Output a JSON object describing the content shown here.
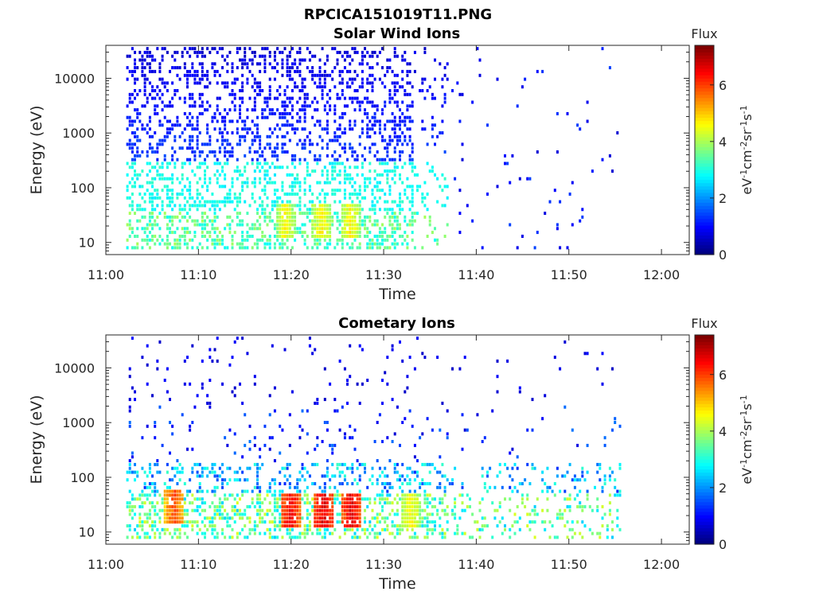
{
  "figure_title": "RPCICA151019T11.PNG",
  "chart_data": [
    {
      "type": "heatmap",
      "title": "Solar Wind Ions",
      "xlabel": "Time",
      "ylabel": "Energy (eV)",
      "xticks": [
        "11:00",
        "11:10",
        "11:20",
        "11:30",
        "11:40",
        "11:50",
        "12:00"
      ],
      "xlim_minutes": [
        0,
        63
      ],
      "yscale": "log",
      "yticks": [
        10,
        100,
        1000,
        10000
      ],
      "ytick_labels": [
        "10",
        "100",
        "1000",
        "10000"
      ],
      "ylim": [
        6,
        40000
      ],
      "colorbar": {
        "title": "Flux",
        "label": "eV-1cm-2sr-1s-1",
        "range": [
          0,
          7.4
        ],
        "ticks": [
          "0",
          "2",
          "4",
          "6"
        ],
        "colormap": "jet"
      },
      "activity_end_minute": 55.2,
      "hotspots": [
        {
          "minute": 19.3,
          "energy_eV": 25,
          "flux": 4.9
        },
        {
          "minute": 23.2,
          "energy_eV": 25,
          "flux": 5.0
        },
        {
          "minute": 26.3,
          "energy_eV": 25,
          "flux": 5.0
        }
      ]
    },
    {
      "type": "heatmap",
      "title": "Cometary Ions",
      "xlabel": "Time",
      "ylabel": "Energy (eV)",
      "xticks": [
        "11:00",
        "11:10",
        "11:20",
        "11:30",
        "11:40",
        "11:50",
        "12:00"
      ],
      "xlim_minutes": [
        0,
        63
      ],
      "yscale": "log",
      "yticks": [
        10,
        100,
        1000,
        10000
      ],
      "ytick_labels": [
        "10",
        "100",
        "1000",
        "10000"
      ],
      "ylim": [
        6,
        40000
      ],
      "colorbar": {
        "title": "Flux",
        "label": "eV-1cm-2sr-1s-1",
        "range": [
          0,
          7.4
        ],
        "ticks": [
          "0",
          "2",
          "4",
          "6"
        ],
        "colormap": "jet"
      },
      "activity_end_minute": 55.6,
      "hotspots": [
        {
          "minute": 7.3,
          "energy_eV": 30,
          "flux": 6.2
        },
        {
          "minute": 19.8,
          "energy_eV": 25,
          "flux": 6.8
        },
        {
          "minute": 23.4,
          "energy_eV": 25,
          "flux": 7.0
        },
        {
          "minute": 26.4,
          "energy_eV": 25,
          "flux": 7.0
        },
        {
          "minute": 32.8,
          "energy_eV": 25,
          "flux": 5.0
        }
      ]
    }
  ]
}
